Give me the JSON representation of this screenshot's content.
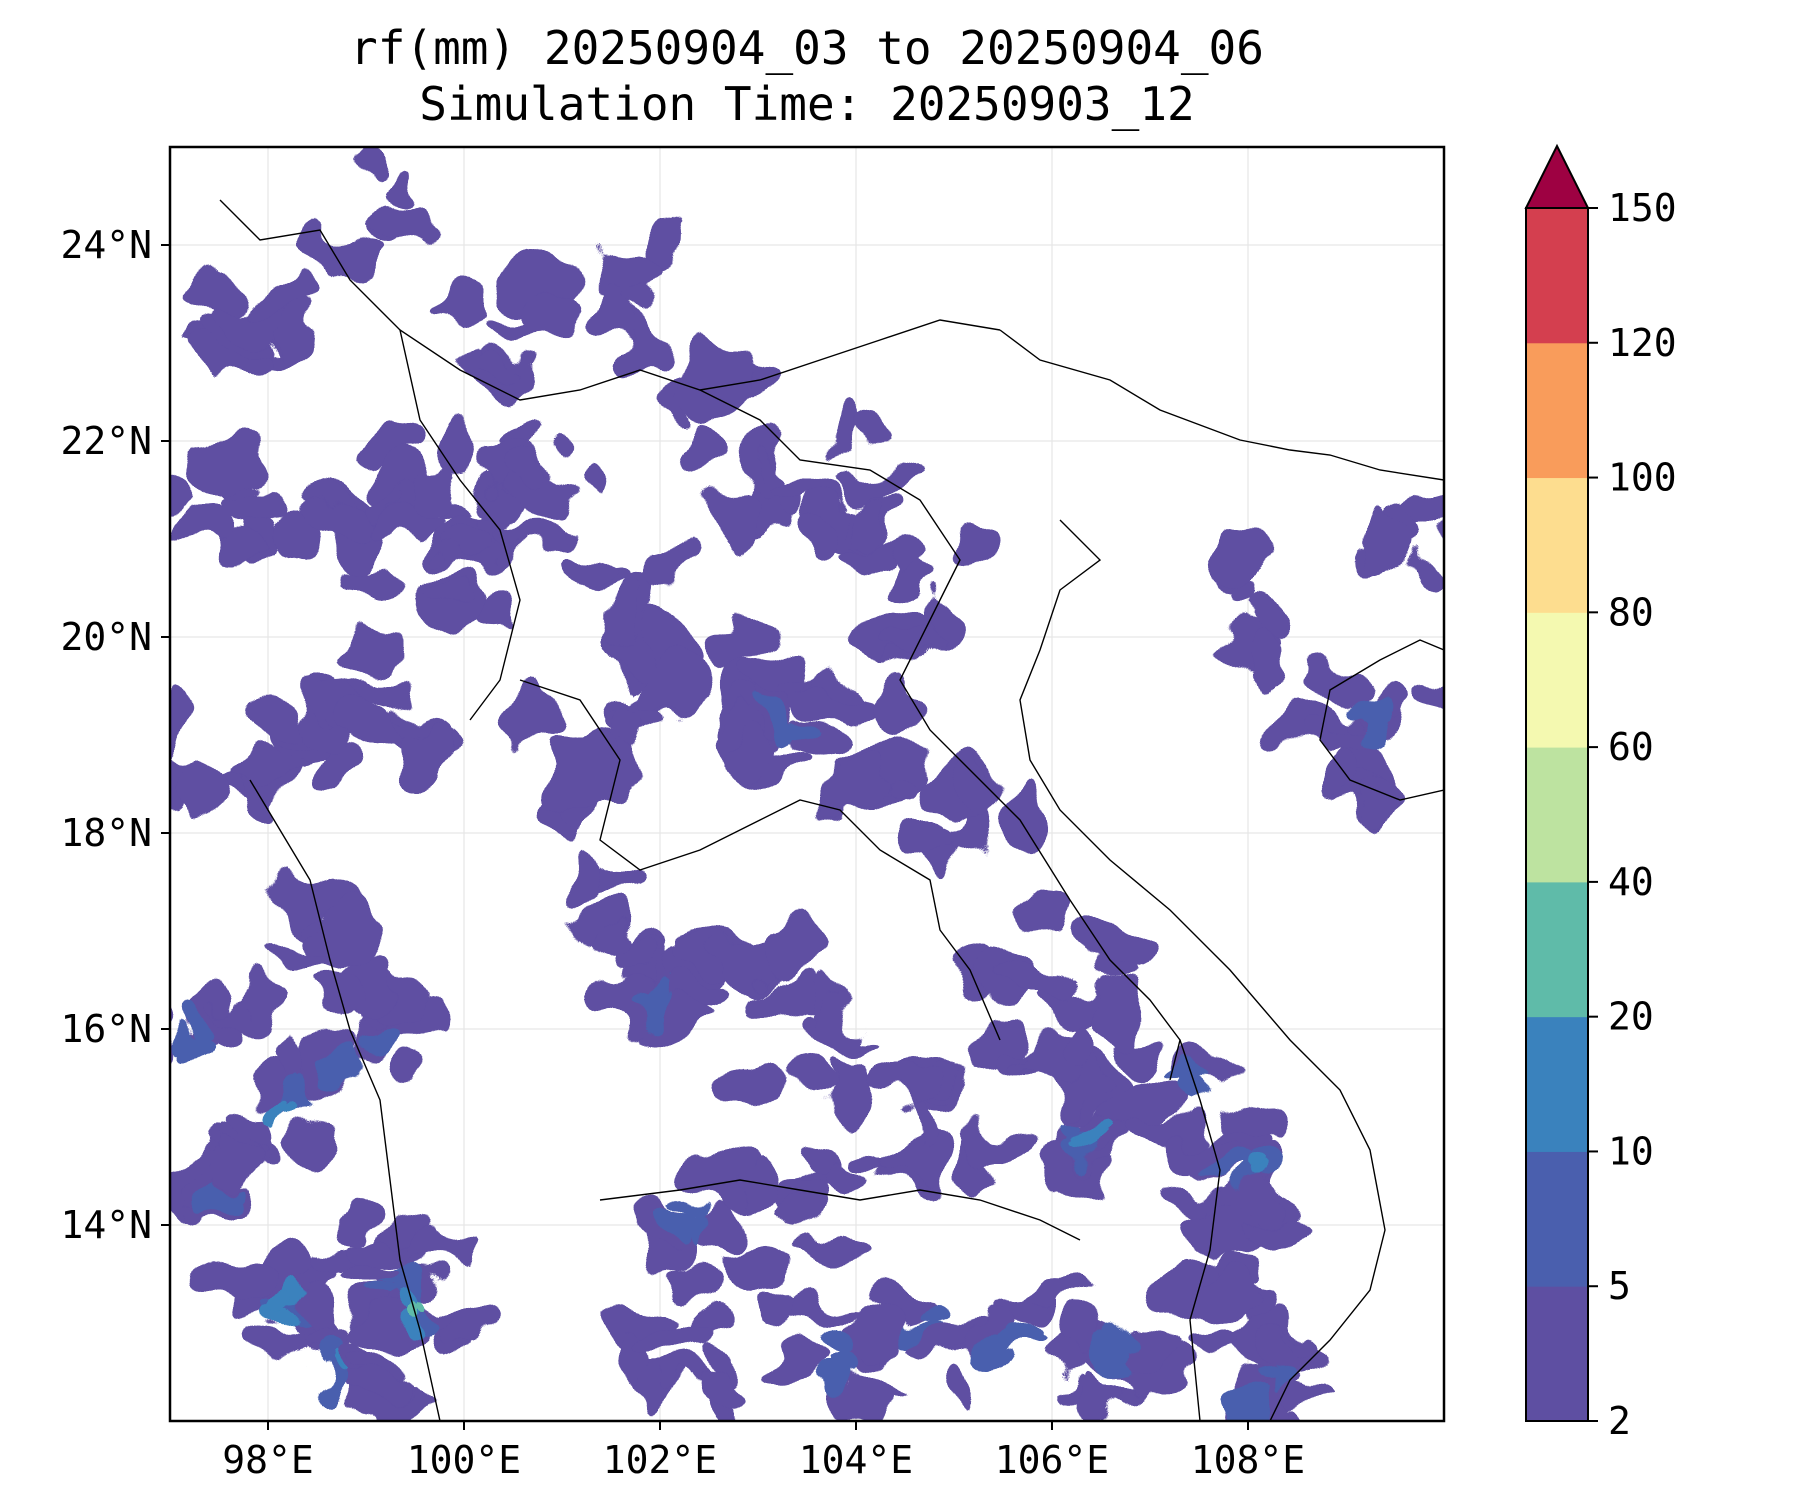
{
  "title": {
    "line1": "rf(mm) 20250904_03 to 20250904_06",
    "line2": "Simulation Time: 20250903_12"
  },
  "map": {
    "lon_range": [
      97.0,
      110.0
    ],
    "lat_range": [
      12.0,
      25.0
    ],
    "x_ticks": [
      {
        "value": 98,
        "label": "98°E"
      },
      {
        "value": 100,
        "label": "100°E"
      },
      {
        "value": 102,
        "label": "102°E"
      },
      {
        "value": 104,
        "label": "104°E"
      },
      {
        "value": 106,
        "label": "106°E"
      },
      {
        "value": 108,
        "label": "108°E"
      }
    ],
    "y_ticks": [
      {
        "value": 14,
        "label": "14°N"
      },
      {
        "value": 16,
        "label": "16°N"
      },
      {
        "value": 18,
        "label": "18°N"
      },
      {
        "value": 20,
        "label": "20°N"
      },
      {
        "value": 22,
        "label": "22°N"
      },
      {
        "value": 24,
        "label": "24°N"
      }
    ],
    "gridlines": true,
    "rain_regions": [
      {
        "lon": 97.5,
        "lat": 14.5,
        "level": 1
      },
      {
        "lon": 98.2,
        "lat": 13.2,
        "level": 2
      },
      {
        "lon": 98.8,
        "lat": 12.6,
        "level": 2
      },
      {
        "lon": 99.3,
        "lat": 13.5,
        "level": 1
      },
      {
        "lon": 99.5,
        "lat": 13.1,
        "level": 3
      },
      {
        "lon": 97.3,
        "lat": 16.0,
        "level": 1
      },
      {
        "lon": 98.2,
        "lat": 15.2,
        "level": 2
      },
      {
        "lon": 99.0,
        "lat": 15.8,
        "level": 1
      },
      {
        "lon": 98.5,
        "lat": 16.8,
        "level": 0
      },
      {
        "lon": 97.5,
        "lat": 18.5,
        "level": 0
      },
      {
        "lon": 98.5,
        "lat": 19.0,
        "level": 0
      },
      {
        "lon": 99.4,
        "lat": 19.4,
        "level": 0
      },
      {
        "lon": 97.5,
        "lat": 21.4,
        "level": 0
      },
      {
        "lon": 98.5,
        "lat": 21.0,
        "level": 0
      },
      {
        "lon": 99.5,
        "lat": 21.6,
        "level": 0
      },
      {
        "lon": 100.3,
        "lat": 20.8,
        "level": 0
      },
      {
        "lon": 101.0,
        "lat": 21.5,
        "level": 0
      },
      {
        "lon": 101.6,
        "lat": 20.4,
        "level": 0
      },
      {
        "lon": 100.5,
        "lat": 23.2,
        "level": 0
      },
      {
        "lon": 101.8,
        "lat": 23.5,
        "level": 0
      },
      {
        "lon": 97.8,
        "lat": 23.4,
        "level": 0
      },
      {
        "lon": 99.0,
        "lat": 24.3,
        "level": 0
      },
      {
        "lon": 102.7,
        "lat": 22.3,
        "level": 0
      },
      {
        "lon": 103.3,
        "lat": 21.3,
        "level": 0
      },
      {
        "lon": 104.2,
        "lat": 21.8,
        "level": 0
      },
      {
        "lon": 104.7,
        "lat": 20.4,
        "level": 0
      },
      {
        "lon": 102.5,
        "lat": 19.4,
        "level": 0
      },
      {
        "lon": 103.3,
        "lat": 19.0,
        "level": 1
      },
      {
        "lon": 104.3,
        "lat": 18.8,
        "level": 0
      },
      {
        "lon": 105.2,
        "lat": 18.0,
        "level": 0
      },
      {
        "lon": 101.2,
        "lat": 18.7,
        "level": 0
      },
      {
        "lon": 101.5,
        "lat": 17.2,
        "level": 0
      },
      {
        "lon": 102.0,
        "lat": 16.5,
        "level": 1
      },
      {
        "lon": 102.8,
        "lat": 16.8,
        "level": 0
      },
      {
        "lon": 103.5,
        "lat": 16.0,
        "level": 0
      },
      {
        "lon": 104.2,
        "lat": 15.0,
        "level": 0
      },
      {
        "lon": 102.3,
        "lat": 14.0,
        "level": 1
      },
      {
        "lon": 103.2,
        "lat": 13.9,
        "level": 0
      },
      {
        "lon": 105.0,
        "lat": 15.0,
        "level": 0
      },
      {
        "lon": 106.4,
        "lat": 15.0,
        "level": 2
      },
      {
        "lon": 107.3,
        "lat": 15.3,
        "level": 1
      },
      {
        "lon": 108.0,
        "lat": 14.6,
        "level": 2
      },
      {
        "lon": 105.8,
        "lat": 16.0,
        "level": 0
      },
      {
        "lon": 106.3,
        "lat": 16.7,
        "level": 0
      },
      {
        "lon": 104.6,
        "lat": 13.0,
        "level": 1
      },
      {
        "lon": 105.5,
        "lat": 12.8,
        "level": 1
      },
      {
        "lon": 106.6,
        "lat": 12.8,
        "level": 1
      },
      {
        "lon": 107.6,
        "lat": 13.4,
        "level": 0
      },
      {
        "lon": 108.2,
        "lat": 12.4,
        "level": 1
      },
      {
        "lon": 103.7,
        "lat": 12.6,
        "level": 1
      },
      {
        "lon": 102.2,
        "lat": 12.5,
        "level": 0
      },
      {
        "lon": 108.9,
        "lat": 18.8,
        "level": 0
      },
      {
        "lon": 109.4,
        "lat": 19.1,
        "level": 1
      },
      {
        "lon": 109.8,
        "lat": 20.8,
        "level": 0
      },
      {
        "lon": 108.3,
        "lat": 20.3,
        "level": 0
      }
    ]
  },
  "colorbar": {
    "extend": "max",
    "levels": [
      {
        "value": 2,
        "color": "#5e4fa2"
      },
      {
        "value": 5,
        "color": "#4a5fae"
      },
      {
        "value": 10,
        "color": "#3a82bd"
      },
      {
        "value": 20,
        "color": "#5fbba9"
      },
      {
        "value": 40,
        "color": "#bde3a0"
      },
      {
        "value": 60,
        "color": "#f4f9b0"
      },
      {
        "value": 80,
        "color": "#fddd8f"
      },
      {
        "value": 100,
        "color": "#f99c5b"
      },
      {
        "value": 120,
        "color": "#d43f4f"
      },
      {
        "value": 150,
        "color": "#9e0142"
      }
    ]
  }
}
